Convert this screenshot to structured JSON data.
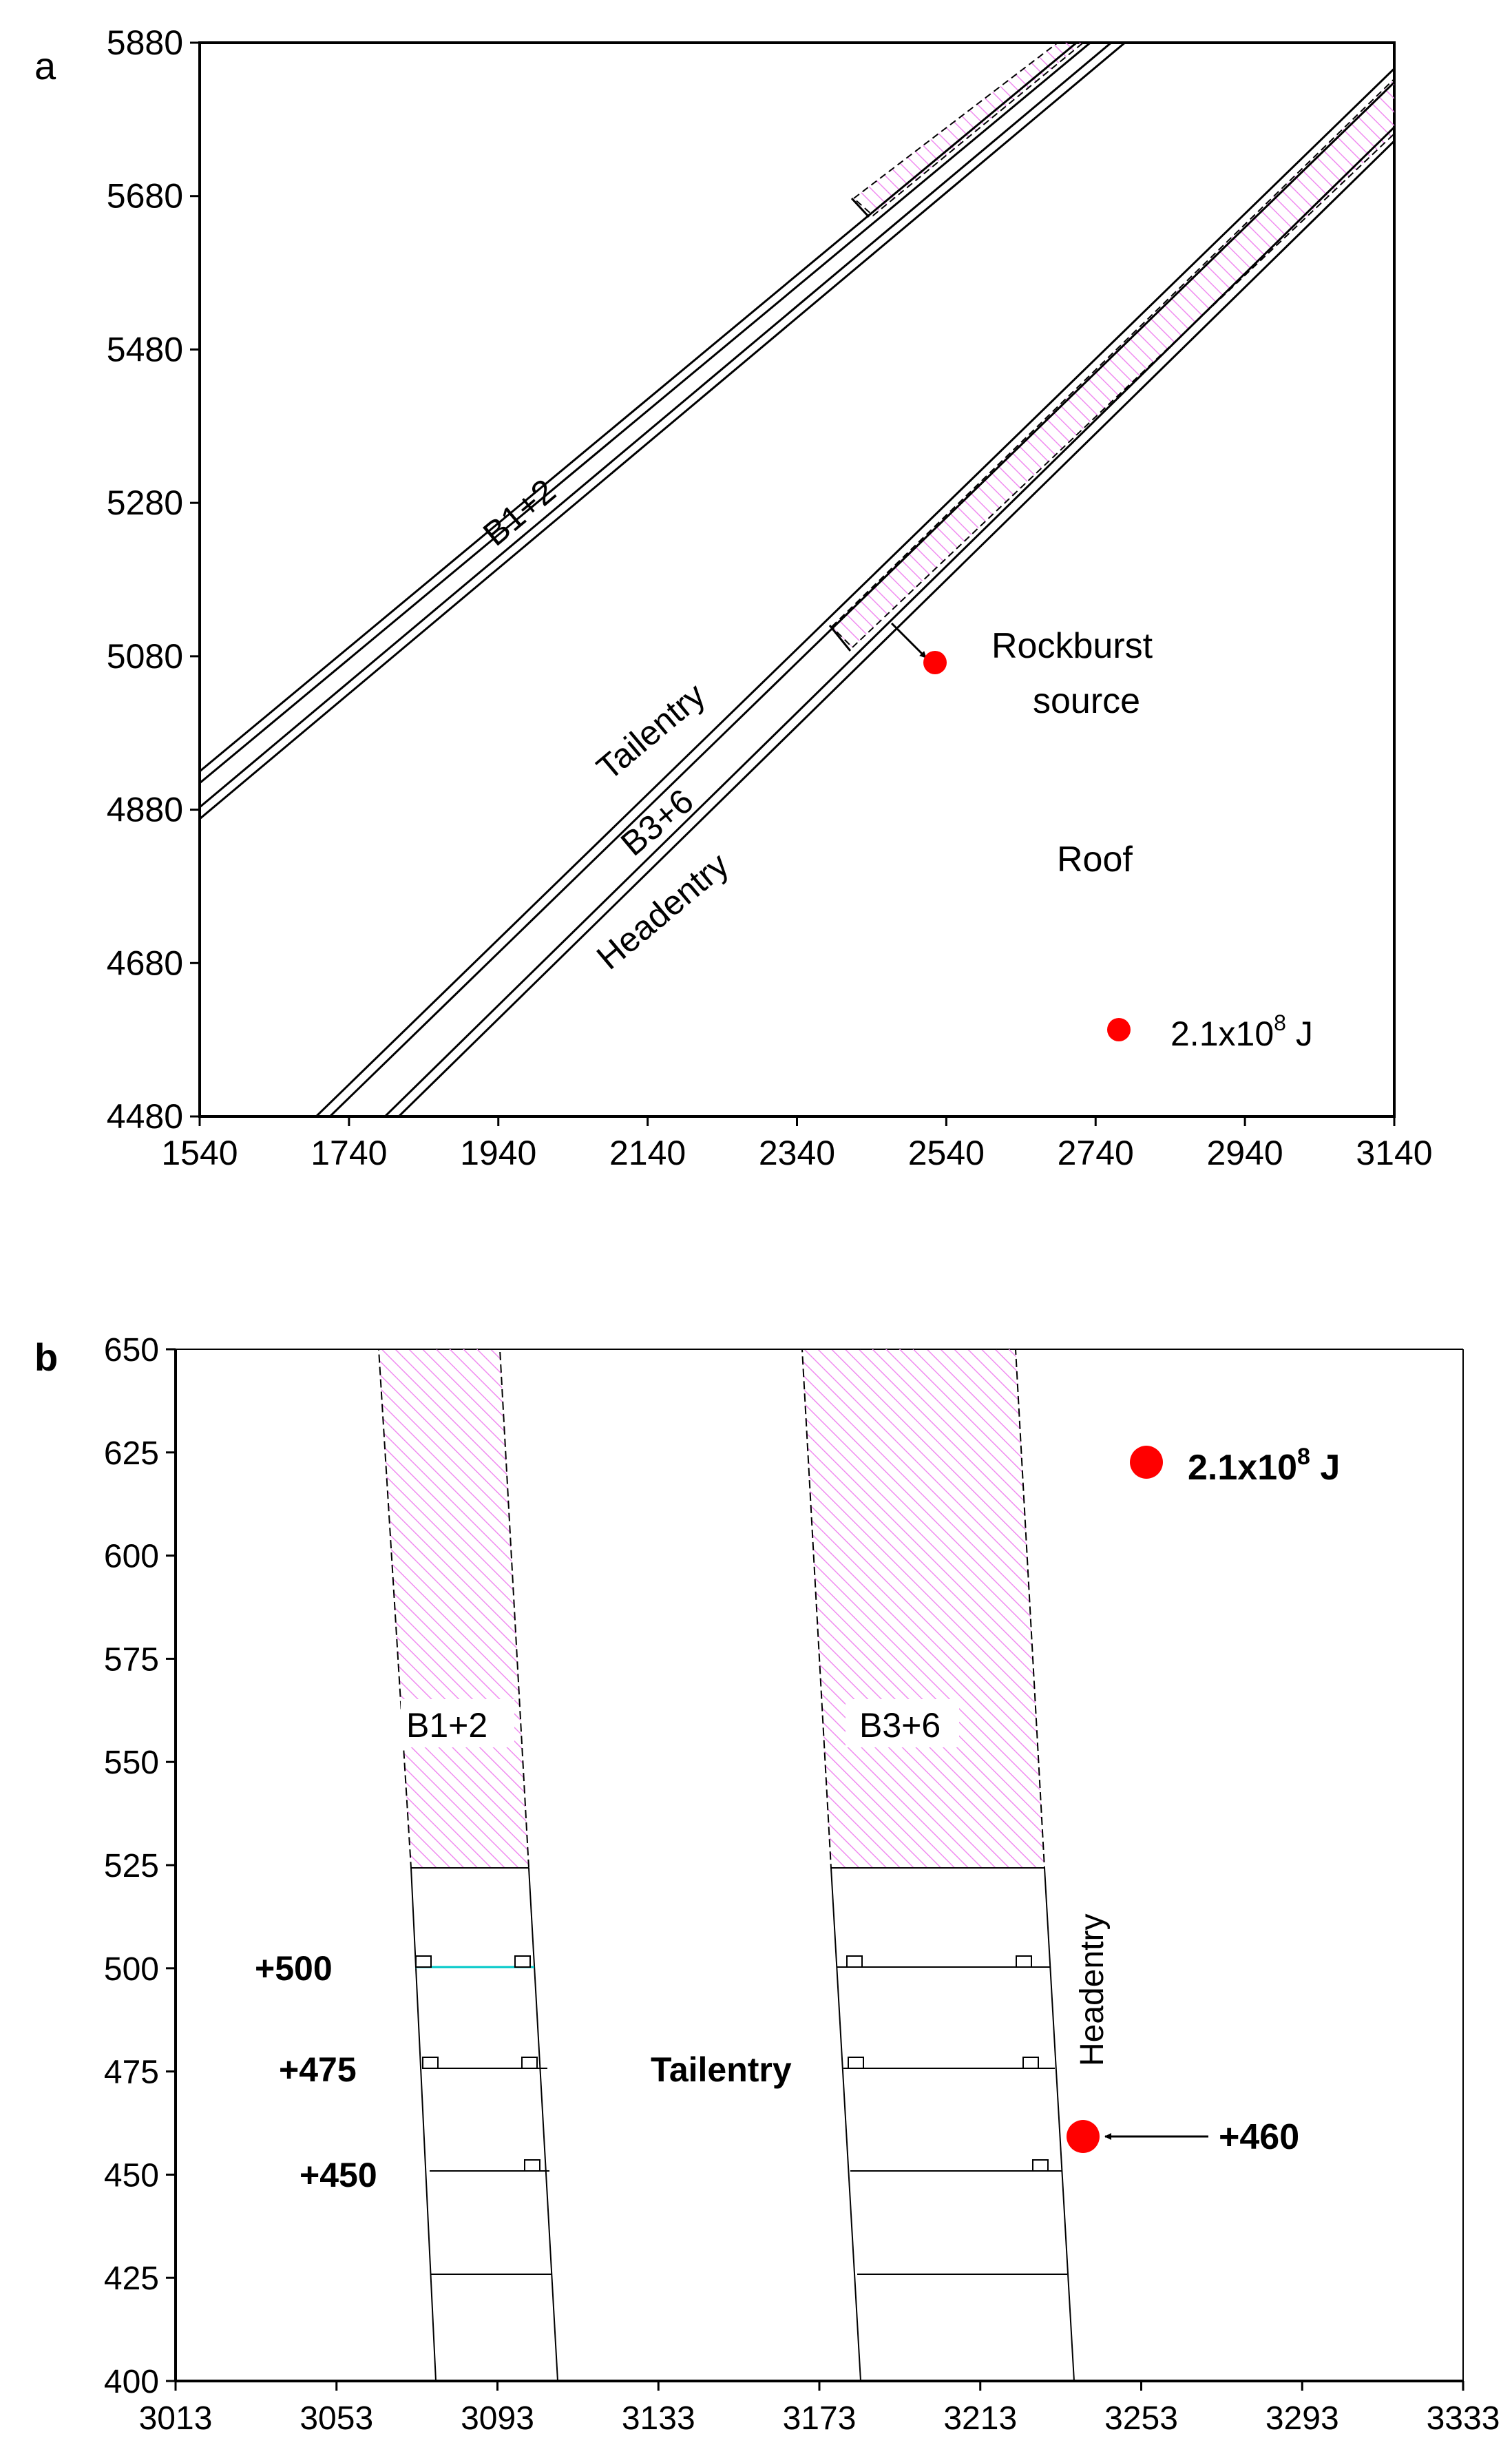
{
  "panel_a": {
    "label": "a",
    "x_ticks": [
      "1540",
      "1740",
      "1940",
      "2140",
      "2340",
      "2540",
      "2740",
      "2940",
      "3140"
    ],
    "y_ticks": [
      "4480",
      "4680",
      "4880",
      "5080",
      "5280",
      "5480",
      "5680",
      "5880"
    ],
    "labels": {
      "b12": "B1+2",
      "tailentry": "Tailentry",
      "b36": "B3+6",
      "headentry": "Headentry",
      "rockburst_line1": "Rockburst",
      "rockburst_line2": "source",
      "roof": "Roof"
    },
    "legend": {
      "energy_base": "2.1x10",
      "energy_exp": "8",
      "energy_unit": " J"
    },
    "rockburst_point": {
      "x": 2530,
      "y": 5075
    }
  },
  "panel_b": {
    "label": "b",
    "x_ticks": [
      "3013",
      "3053",
      "3093",
      "3133",
      "3173",
      "3213",
      "3253",
      "3293",
      "3333"
    ],
    "y_ticks": [
      "400",
      "425",
      "450",
      "475",
      "500",
      "525",
      "550",
      "575",
      "600",
      "625",
      "650"
    ],
    "labels": {
      "b12": "B1+2",
      "b36": "B3+6",
      "tailentry": "Tailentry",
      "headentry": "Headentry",
      "level_500": "+500",
      "level_475": "+475",
      "level_450": "+450",
      "level_460": "+460"
    },
    "legend": {
      "energy_base": "2.1x10",
      "energy_exp": "8",
      "energy_unit": " J"
    },
    "rockburst_point": {
      "x": 3246,
      "y": 458
    }
  },
  "colors": {
    "hatch": "#f08cf0",
    "event": "#ff0000",
    "cyan_line": "#00c8c8"
  }
}
